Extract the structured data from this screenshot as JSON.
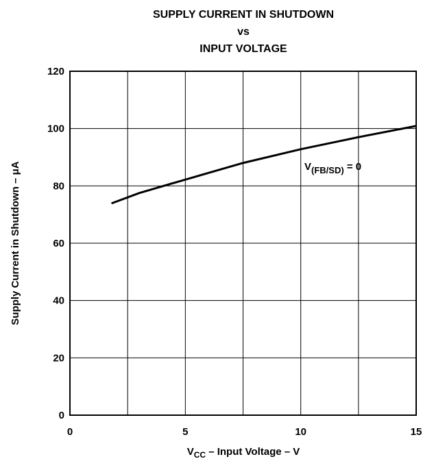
{
  "chart_data": {
    "type": "line",
    "title": [
      "SUPPLY CURRENT IN SHUTDOWN",
      "vs",
      "INPUT VOLTAGE"
    ],
    "x_label": {
      "main": "V",
      "sub": "CC",
      "rest": " – Input Voltage – V"
    },
    "y_label": "Supply Current in Shutdown – μA",
    "annotation": {
      "main": "V",
      "sub": "(FB/SD)",
      "rest": " = 0"
    },
    "xlim": [
      0,
      15
    ],
    "xticks": [
      0,
      5,
      10,
      15
    ],
    "xminor_ticks": [
      2.5,
      7.5,
      12.5
    ],
    "ylim": [
      0,
      120
    ],
    "yticks": [
      0,
      20,
      40,
      60,
      80,
      100,
      120
    ],
    "grid": true,
    "series": [
      {
        "color": "#000000",
        "x": [
          1.8,
          3,
          5,
          7.5,
          10,
          12.5,
          15
        ],
        "values": [
          73.9,
          77.5,
          82.2,
          88,
          92.8,
          97,
          100.9
        ]
      }
    ]
  }
}
